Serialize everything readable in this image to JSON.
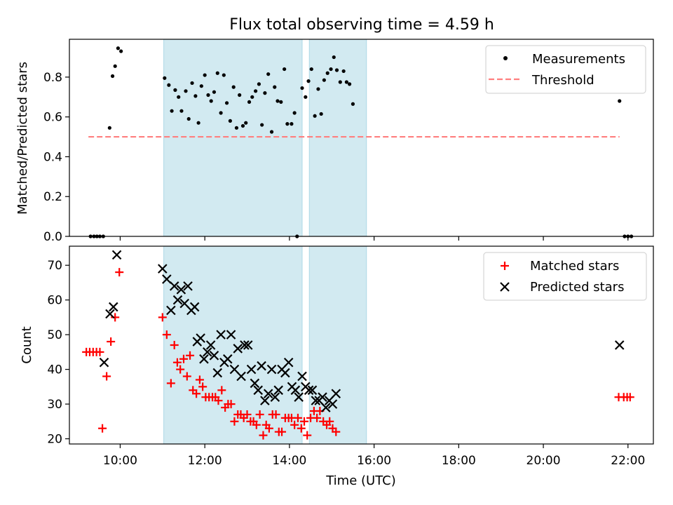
{
  "title": "Flux total observing time = 4.59 h",
  "chart_data": [
    {
      "type": "scatter",
      "panel": "top",
      "ylabel": "Matched/Predicted stars",
      "ylim": [
        0,
        0.99
      ],
      "xlim": [
        8.8,
        22.6
      ],
      "yticks": [
        0.0,
        0.2,
        0.4,
        0.6,
        0.8
      ],
      "ytick_labels": [
        "0.0",
        "0.2",
        "0.4",
        "0.6",
        "0.8"
      ],
      "legend_position": "top-right",
      "legend": [
        "Measurements",
        "Threshold"
      ],
      "threshold": {
        "name": "Threshold",
        "value": 0.5,
        "x_range": [
          9.25,
          21.8
        ],
        "color": "#ff7f7f",
        "style": "dashed"
      },
      "shaded_intervals": [
        [
          11.03,
          14.3
        ],
        [
          14.47,
          15.82
        ]
      ],
      "series": [
        {
          "name": "Measurements",
          "color": "#000000",
          "points": [
            [
              9.3,
              0.0
            ],
            [
              9.38,
              0.0
            ],
            [
              9.45,
              0.0
            ],
            [
              9.52,
              0.0
            ],
            [
              9.6,
              0.0
            ],
            [
              9.75,
              0.545
            ],
            [
              9.82,
              0.805
            ],
            [
              9.88,
              0.855
            ],
            [
              9.95,
              0.945
            ],
            [
              10.02,
              0.93
            ],
            [
              11.05,
              0.795
            ],
            [
              11.15,
              0.76
            ],
            [
              11.22,
              0.63
            ],
            [
              11.3,
              0.735
            ],
            [
              11.38,
              0.7
            ],
            [
              11.45,
              0.63
            ],
            [
              11.55,
              0.73
            ],
            [
              11.62,
              0.59
            ],
            [
              11.7,
              0.77
            ],
            [
              11.78,
              0.705
            ],
            [
              11.85,
              0.57
            ],
            [
              11.92,
              0.755
            ],
            [
              12.0,
              0.81
            ],
            [
              12.08,
              0.71
            ],
            [
              12.15,
              0.68
            ],
            [
              12.22,
              0.725
            ],
            [
              12.3,
              0.82
            ],
            [
              12.38,
              0.62
            ],
            [
              12.45,
              0.81
            ],
            [
              12.52,
              0.67
            ],
            [
              12.6,
              0.58
            ],
            [
              12.68,
              0.75
            ],
            [
              12.75,
              0.545
            ],
            [
              12.82,
              0.71
            ],
            [
              12.9,
              0.555
            ],
            [
              12.97,
              0.57
            ],
            [
              13.05,
              0.675
            ],
            [
              13.12,
              0.7
            ],
            [
              13.2,
              0.73
            ],
            [
              13.28,
              0.765
            ],
            [
              13.35,
              0.56
            ],
            [
              13.42,
              0.72
            ],
            [
              13.5,
              0.815
            ],
            [
              13.58,
              0.525
            ],
            [
              13.65,
              0.75
            ],
            [
              13.72,
              0.68
            ],
            [
              13.8,
              0.675
            ],
            [
              13.88,
              0.84
            ],
            [
              13.95,
              0.565
            ],
            [
              14.05,
              0.565
            ],
            [
              14.12,
              0.62
            ],
            [
              14.18,
              0.0
            ],
            [
              14.3,
              0.745
            ],
            [
              14.38,
              0.7
            ],
            [
              14.45,
              0.78
            ],
            [
              14.52,
              0.84
            ],
            [
              14.6,
              0.605
            ],
            [
              14.68,
              0.74
            ],
            [
              14.75,
              0.615
            ],
            [
              14.82,
              0.785
            ],
            [
              14.9,
              0.82
            ],
            [
              14.98,
              0.84
            ],
            [
              15.05,
              0.9
            ],
            [
              15.12,
              0.835
            ],
            [
              15.2,
              0.775
            ],
            [
              15.28,
              0.83
            ],
            [
              15.35,
              0.775
            ],
            [
              15.42,
              0.765
            ],
            [
              15.5,
              0.665
            ],
            [
              21.8,
              0.68
            ],
            [
              21.92,
              0.0
            ],
            [
              22.0,
              0.0
            ],
            [
              22.08,
              0.0
            ]
          ]
        }
      ]
    },
    {
      "type": "scatter",
      "panel": "bottom",
      "ylabel": "Count",
      "xlabel": "Time (UTC)",
      "ylim": [
        18.5,
        75.5
      ],
      "xlim": [
        8.8,
        22.6
      ],
      "yticks": [
        20,
        30,
        40,
        50,
        60,
        70
      ],
      "ytick_labels": [
        "20",
        "30",
        "40",
        "50",
        "60",
        "70"
      ],
      "xticks": [
        10,
        12,
        14,
        16,
        18,
        20,
        22
      ],
      "xtick_labels": [
        "10:00",
        "12:00",
        "14:00",
        "16:00",
        "18:00",
        "20:00",
        "22:00"
      ],
      "legend_position": "top-right",
      "legend": [
        "Matched stars",
        "Predicted stars"
      ],
      "shaded_intervals": [
        [
          11.03,
          14.3
        ],
        [
          14.47,
          15.82
        ]
      ],
      "series": [
        {
          "name": "Matched stars",
          "marker": "plus",
          "color": "#ff0000",
          "points": [
            [
              9.2,
              45
            ],
            [
              9.28,
              45
            ],
            [
              9.36,
              45
            ],
            [
              9.44,
              45
            ],
            [
              9.52,
              45
            ],
            [
              9.58,
              23
            ],
            [
              9.68,
              38
            ],
            [
              9.78,
              48
            ],
            [
              9.88,
              55
            ],
            [
              9.98,
              68
            ],
            [
              11.0,
              55
            ],
            [
              11.1,
              50
            ],
            [
              11.2,
              36
            ],
            [
              11.28,
              47
            ],
            [
              11.35,
              42
            ],
            [
              11.42,
              40
            ],
            [
              11.5,
              43
            ],
            [
              11.58,
              38
            ],
            [
              11.65,
              44
            ],
            [
              11.72,
              34
            ],
            [
              11.8,
              33
            ],
            [
              11.88,
              37
            ],
            [
              11.95,
              35
            ],
            [
              12.02,
              32
            ],
            [
              12.1,
              32
            ],
            [
              12.18,
              32
            ],
            [
              12.25,
              32
            ],
            [
              12.32,
              31
            ],
            [
              12.4,
              34
            ],
            [
              12.48,
              29
            ],
            [
              12.55,
              30
            ],
            [
              12.62,
              30
            ],
            [
              12.7,
              25
            ],
            [
              12.78,
              27
            ],
            [
              12.85,
              27
            ],
            [
              12.92,
              26
            ],
            [
              13.0,
              27
            ],
            [
              13.08,
              25
            ],
            [
              13.15,
              25
            ],
            [
              13.22,
              24
            ],
            [
              13.3,
              27
            ],
            [
              13.38,
              21
            ],
            [
              13.45,
              24
            ],
            [
              13.52,
              23
            ],
            [
              13.6,
              27
            ],
            [
              13.68,
              27
            ],
            [
              13.75,
              22
            ],
            [
              13.82,
              22
            ],
            [
              13.9,
              26
            ],
            [
              13.98,
              26
            ],
            [
              14.05,
              26
            ],
            [
              14.12,
              24
            ],
            [
              14.2,
              26
            ],
            [
              14.28,
              23
            ],
            [
              14.35,
              25
            ],
            [
              14.42,
              21
            ],
            [
              14.5,
              26
            ],
            [
              14.58,
              28
            ],
            [
              14.65,
              26
            ],
            [
              14.72,
              28
            ],
            [
              14.8,
              25
            ],
            [
              14.88,
              24
            ],
            [
              14.95,
              25
            ],
            [
              15.02,
              23
            ],
            [
              15.1,
              22
            ],
            [
              21.78,
              32
            ],
            [
              21.9,
              32
            ],
            [
              21.98,
              32
            ],
            [
              22.05,
              32
            ]
          ]
        },
        {
          "name": "Predicted stars",
          "marker": "x",
          "color": "#000000",
          "points": [
            [
              9.62,
              42
            ],
            [
              9.76,
              56
            ],
            [
              9.84,
              58
            ],
            [
              9.92,
              73
            ],
            [
              11.0,
              69
            ],
            [
              11.1,
              66
            ],
            [
              11.2,
              57
            ],
            [
              11.28,
              64
            ],
            [
              11.36,
              60
            ],
            [
              11.44,
              63
            ],
            [
              11.52,
              59
            ],
            [
              11.6,
              64
            ],
            [
              11.68,
              57
            ],
            [
              11.76,
              58
            ],
            [
              11.82,
              48
            ],
            [
              11.9,
              49
            ],
            [
              11.98,
              43
            ],
            [
              12.06,
              45
            ],
            [
              12.14,
              47
            ],
            [
              12.22,
              44
            ],
            [
              12.3,
              39
            ],
            [
              12.38,
              50
            ],
            [
              12.46,
              42
            ],
            [
              12.54,
              43
            ],
            [
              12.62,
              50
            ],
            [
              12.7,
              40
            ],
            [
              12.78,
              46
            ],
            [
              12.86,
              38
            ],
            [
              12.94,
              47
            ],
            [
              13.02,
              47
            ],
            [
              13.1,
              40
            ],
            [
              13.18,
              36
            ],
            [
              13.26,
              34
            ],
            [
              13.34,
              41
            ],
            [
              13.42,
              31
            ],
            [
              13.5,
              33
            ],
            [
              13.58,
              40
            ],
            [
              13.66,
              32
            ],
            [
              13.74,
              34
            ],
            [
              13.82,
              40
            ],
            [
              13.9,
              39
            ],
            [
              13.98,
              42
            ],
            [
              14.06,
              35
            ],
            [
              14.14,
              34
            ],
            [
              14.22,
              32
            ],
            [
              14.3,
              38
            ],
            [
              14.38,
              35
            ],
            [
              14.46,
              34
            ],
            [
              14.54,
              34
            ],
            [
              14.62,
              31
            ],
            [
              14.7,
              31
            ],
            [
              14.78,
              32
            ],
            [
              14.86,
              29
            ],
            [
              14.94,
              31
            ],
            [
              15.02,
              30
            ],
            [
              15.1,
              33
            ],
            [
              21.8,
              47
            ]
          ]
        }
      ]
    }
  ]
}
